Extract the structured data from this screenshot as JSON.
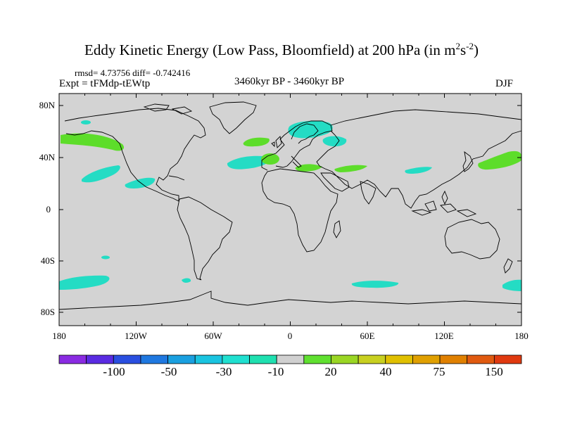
{
  "title": {
    "main": "Eddy Kinetic Energy (Low Pass, Bloomfield) at 200 hPa (in m",
    "sup1": "2",
    "mid": "s",
    "sup2": "-2",
    "end": ")"
  },
  "stats_line": "rmsd= 4.73756 diff= -0.742416",
  "experiment": "Expt = tFMdp-tEWtp",
  "period": "3460kyr BP - 3460kyr BP",
  "season": "DJF",
  "axes": {
    "lat_labels": [
      "80N",
      "40N",
      "0",
      "40S",
      "80S"
    ],
    "lon_labels": [
      "180",
      "120W",
      "60W",
      "0",
      "60E",
      "120E",
      "180"
    ]
  },
  "colorbar": {
    "colors": [
      "#8a2be2",
      "#5a2be2",
      "#2a4fe0",
      "#1f78e0",
      "#1aa0e0",
      "#1ac4e0",
      "#20e0d0",
      "#1fe0b0",
      "#d0d0d0",
      "#60e030",
      "#9ad624",
      "#c8d020",
      "#e0c000",
      "#e0a000",
      "#e08000",
      "#e05a10",
      "#e03a10"
    ],
    "labels": [
      "-100",
      "-50",
      "-30",
      "-10",
      "20",
      "40",
      "75",
      "150"
    ]
  },
  "colors": {
    "land_sea_base": "#d3d3d3",
    "positive_anomaly": "#5ddd2a",
    "negative_anomaly": "#24dcc4",
    "coastline": "#000000"
  }
}
